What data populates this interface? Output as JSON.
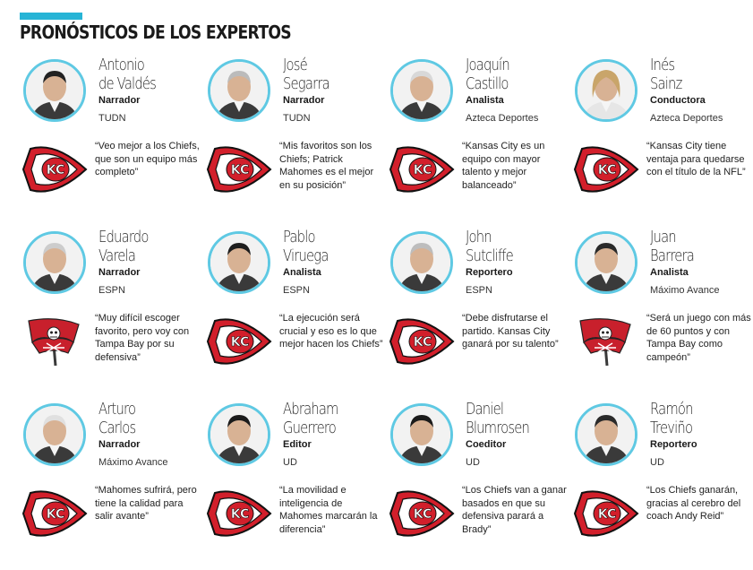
{
  "title": "PRONÓSTICOS DE LOS EXPERTOS",
  "colors": {
    "accent": "#27b4d6",
    "avatar_ring": "#5fc9e3",
    "chiefs_red": "#d21f2b",
    "bucs_red": "#c8202c"
  },
  "experts": [
    {
      "name_line1": "Antonio",
      "name_line2": "de Valdés",
      "role": "Narrador",
      "outlet": "TUDN",
      "quote": "“Veo mejor a los Chiefs, que son un equipo más completo”",
      "team": "chiefs",
      "logo_icon": "chiefs-logo-icon",
      "hair": "#222"
    },
    {
      "name_line1": "José",
      "name_line2": "Segarra",
      "role": "Narrador",
      "outlet": "TUDN",
      "quote": "“Mis favoritos son los Chiefs; Patrick Mahomes es el mejor en su posición”",
      "team": "chiefs",
      "logo_icon": "chiefs-logo-icon",
      "hair": "#bbb"
    },
    {
      "name_line1": "Joaquín",
      "name_line2": "Castillo",
      "role": "Analista",
      "outlet": "Azteca Deportes",
      "quote": "“Kansas City es un equipo con mayor talento y mejor balanceado”",
      "team": "chiefs",
      "logo_icon": "chiefs-logo-icon",
      "hair": "#d8d8d8"
    },
    {
      "name_line1": "Inés",
      "name_line2": "Sainz",
      "role": "Conductora",
      "outlet": "Azteca Deportes",
      "quote": "“Kansas City tiene ventaja para quedarse con el título de la NFL”",
      "team": "chiefs",
      "logo_icon": "chiefs-logo-icon",
      "hair": "#c9a56a"
    },
    {
      "name_line1": "Eduardo",
      "name_line2": "Varela",
      "role": "Narrador",
      "outlet": "ESPN",
      "quote": "“Muy difícil escoger favorito, pero voy con Tampa Bay por su defensiva”",
      "team": "bucs",
      "logo_icon": "buccaneers-logo-icon",
      "hair": "#ccc"
    },
    {
      "name_line1": "Pablo",
      "name_line2": "Viruega",
      "role": "Analista",
      "outlet": "ESPN",
      "quote": "“La ejecución será crucial y eso es lo que mejor hacen los Chiefs”",
      "team": "chiefs",
      "logo_icon": "chiefs-logo-icon",
      "hair": "#1e1e1e"
    },
    {
      "name_line1": "John",
      "name_line2": "Sutcliffe",
      "role": "Reportero",
      "outlet": "ESPN",
      "quote": "“Debe disfrutarse el partido. Kansas City ganará por su talento”",
      "team": "chiefs",
      "logo_icon": "chiefs-logo-icon",
      "hair": "#bdbdbd"
    },
    {
      "name_line1": "Juan",
      "name_line2": "Barrera",
      "role": "Analista",
      "outlet": "Máximo Avance",
      "quote": "“Será un juego con más de 60 puntos y con Tampa Bay como campeón”",
      "team": "bucs",
      "logo_icon": "buccaneers-logo-icon",
      "hair": "#2a2a2a"
    },
    {
      "name_line1": "Arturo",
      "name_line2": "Carlos",
      "role": "Narrador",
      "outlet": "Máximo Avance",
      "quote": "“Mahomes sufrirá, pero tiene la calidad para salir avante”",
      "team": "chiefs",
      "logo_icon": "chiefs-logo-icon",
      "hair": "#e0e0e0"
    },
    {
      "name_line1": "Abraham",
      "name_line2": "Guerrero",
      "role": "Editor",
      "outlet": "UD",
      "quote": "“La movilidad e inteligencia de Mahomes marcarán la diferencia”",
      "team": "chiefs",
      "logo_icon": "chiefs-logo-icon",
      "hair": "#1b1b1b"
    },
    {
      "name_line1": "Daniel",
      "name_line2": "Blumrosen",
      "role": "Coeditor",
      "outlet": "UD",
      "quote": "“Los Chiefs van a ganar basados en que su defensiva parará a Brady”",
      "team": "chiefs",
      "logo_icon": "chiefs-logo-icon",
      "hair": "#1b1b1b"
    },
    {
      "name_line1": "Ramón",
      "name_line2": "Treviño",
      "role": "Reportero",
      "outlet": "UD",
      "quote": "“Los Chiefs ganarán, gracias al cerebro del coach Andy Reid”",
      "team": "chiefs",
      "logo_icon": "chiefs-logo-icon",
      "hair": "#2a2a2a"
    }
  ]
}
